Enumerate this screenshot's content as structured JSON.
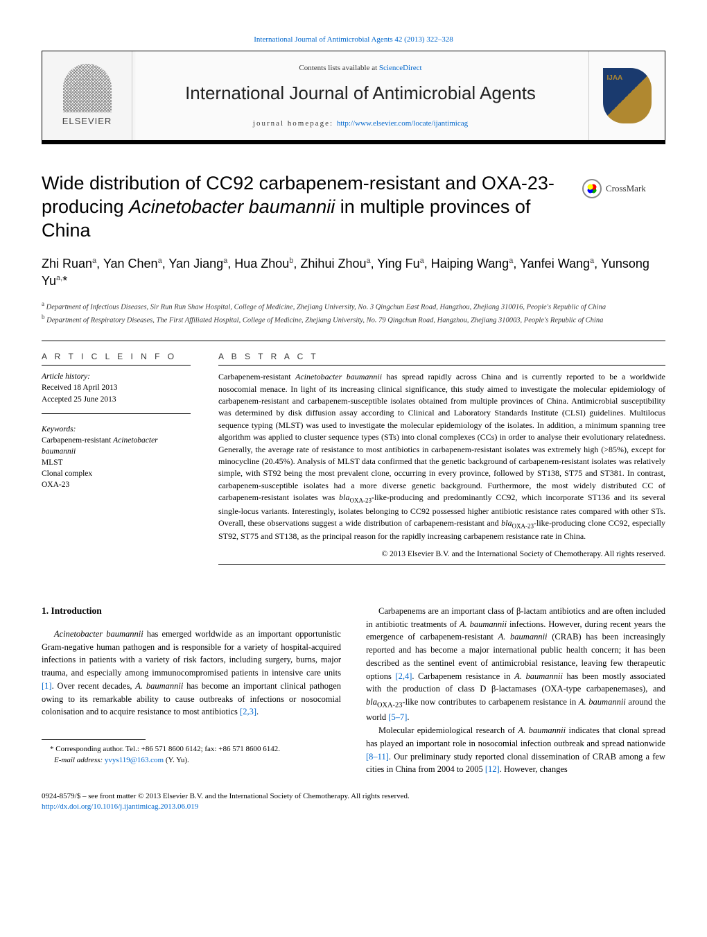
{
  "top_citation_link": "International Journal of Antimicrobial Agents 42 (2013) 322–328",
  "header": {
    "contents_text": "Contents lists available at ",
    "contents_link": "ScienceDirect",
    "journal_title": "International Journal of Antimicrobial Agents",
    "homepage_label": "journal homepage: ",
    "homepage_url": "http://www.elsevier.com/locate/ijantimicag",
    "elsevier_label": "ELSEVIER"
  },
  "crossmark_label": "CrossMark",
  "article": {
    "title_html": "Wide distribution of CC92 carbapenem-resistant and OXA-23-producing <em>Acinetobacter baumannii</em> in multiple provinces of China",
    "authors_html": "Zhi Ruan<sup>a</sup>, Yan Chen<sup>a</sup>, Yan Jiang<sup>a</sup>, Hua Zhou<sup>b</sup>, Zhihui Zhou<sup>a</sup>, Ying Fu<sup>a</sup>, Haiping Wang<sup>a</sup>, Yanfei Wang<sup>a</sup>, Yunsong Yu<sup>a,</sup>*",
    "affiliations": [
      "a Department of Infectious Diseases, Sir Run Run Shaw Hospital, College of Medicine, Zhejiang University, No. 3 Qingchun East Road, Hangzhou, Zhejiang 310016, People's Republic of China",
      "b Department of Respiratory Diseases, The First Affiliated Hospital, College of Medicine, Zhejiang University, No. 79 Qingchun Road, Hangzhou, Zhejiang 310003, People's Republic of China"
    ]
  },
  "article_info": {
    "heading": "A R T I C L E   I N F O",
    "history_label": "Article history:",
    "received": "Received 18 April 2013",
    "accepted": "Accepted 25 June 2013",
    "keywords_label": "Keywords:",
    "keywords": [
      "Carbapenem-resistant <em>Acinetobacter baumannii</em>",
      "MLST",
      "Clonal complex",
      "OXA-23"
    ]
  },
  "abstract": {
    "heading": "A B S T R A C T",
    "text_html": "Carbapenem-resistant <em>Acinetobacter baumannii</em> has spread rapidly across China and is currently reported to be a worldwide nosocomial menace. In light of its increasing clinical significance, this study aimed to investigate the molecular epidemiology of carbapenem-resistant and carbapenem-susceptible isolates obtained from multiple provinces of China. Antimicrobial susceptibility was determined by disk diffusion assay according to Clinical and Laboratory Standards Institute (CLSI) guidelines. Multilocus sequence typing (MLST) was used to investigate the molecular epidemiology of the isolates. In addition, a minimum spanning tree algorithm was applied to cluster sequence types (STs) into clonal complexes (CCs) in order to analyse their evolutionary relatedness. Generally, the average rate of resistance to most antibiotics in carbapenem-resistant isolates was extremely high (>85%), except for minocycline (20.45%). Analysis of MLST data confirmed that the genetic background of carbapenem-resistant isolates was relatively simple, with ST92 being the most prevalent clone, occurring in every province, followed by ST138, ST75 and ST381. In contrast, carbapenem-susceptible isolates had a more diverse genetic background. Furthermore, the most widely distributed CC of carbapenem-resistant isolates was <em>bla</em><sub>OXA-23</sub>-like-producing and predominantly CC92, which incorporate ST136 and its several single-locus variants. Interestingly, isolates belonging to CC92 possessed higher antibiotic resistance rates compared with other STs. Overall, these observations suggest a wide distribution of carbapenem-resistant and <em>bla</em><sub>OXA-23</sub>-like-producing clone CC92, especially ST92, ST75 and ST138, as the principal reason for the rapidly increasing carbapenem resistance rate in China.",
    "copyright": "© 2013 Elsevier B.V. and the International Society of Chemotherapy. All rights reserved."
  },
  "body": {
    "intro_heading": "1. Introduction",
    "left_paras": [
      "<em>Acinetobacter baumannii</em> has emerged worldwide as an important opportunistic Gram-negative human pathogen and is responsible for a variety of hospital-acquired infections in patients with a variety of risk factors, including surgery, burns, major trauma, and especially among immunocompromised patients in intensive care units <a href='#'>[1]</a>. Over recent decades, <em>A. baumannii</em> has become an important clinical pathogen owing to its remarkable ability to cause outbreaks of infections or nosocomial colonisation and to acquire resistance to most antibiotics <a href='#'>[2,3]</a>."
    ],
    "right_paras": [
      "Carbapenems are an important class of β-lactam antibiotics and are often included in antibiotic treatments of <em>A. baumannii</em> infections. However, during recent years the emergence of carbapenem-resistant <em>A. baumannii</em> (CRAB) has been increasingly reported and has become a major international public health concern; it has been described as the sentinel event of antimicrobial resistance, leaving few therapeutic options <a href='#'>[2,4]</a>. Carbapenem resistance in <em>A. baumannii</em> has been mostly associated with the production of class D β-lactamases (OXA-type carbapenemases), and <em>bla</em><sub>OXA-23</sub>-like now contributes to carbapenem resistance in <em>A. baumannii</em> around the world <a href='#'>[5–7]</a>.",
      "Molecular epidemiological research of <em>A. baumannii</em> indicates that clonal spread has played an important role in nosocomial infection outbreak and spread nationwide <a href='#'>[8–11]</a>. Our preliminary study reported clonal dissemination of CRAB among a few cities in China from 2004 to 2005 <a href='#'>[12]</a>. However, changes"
    ]
  },
  "footnote": {
    "corresponding": "* Corresponding author. Tel.: +86 571 8600 6142; fax: +86 571 8600 6142.",
    "email_label": "E-mail address: ",
    "email": "yvys119@163.com",
    "email_suffix": " (Y. Yu)."
  },
  "footer": {
    "line1": "0924-8579/$ – see front matter © 2013 Elsevier B.V. and the International Society of Chemotherapy. All rights reserved.",
    "doi": "http://dx.doi.org/10.1016/j.ijantimicag.2013.06.019"
  },
  "colors": {
    "link": "#0066cc",
    "text": "#000000",
    "rule": "#000000"
  }
}
